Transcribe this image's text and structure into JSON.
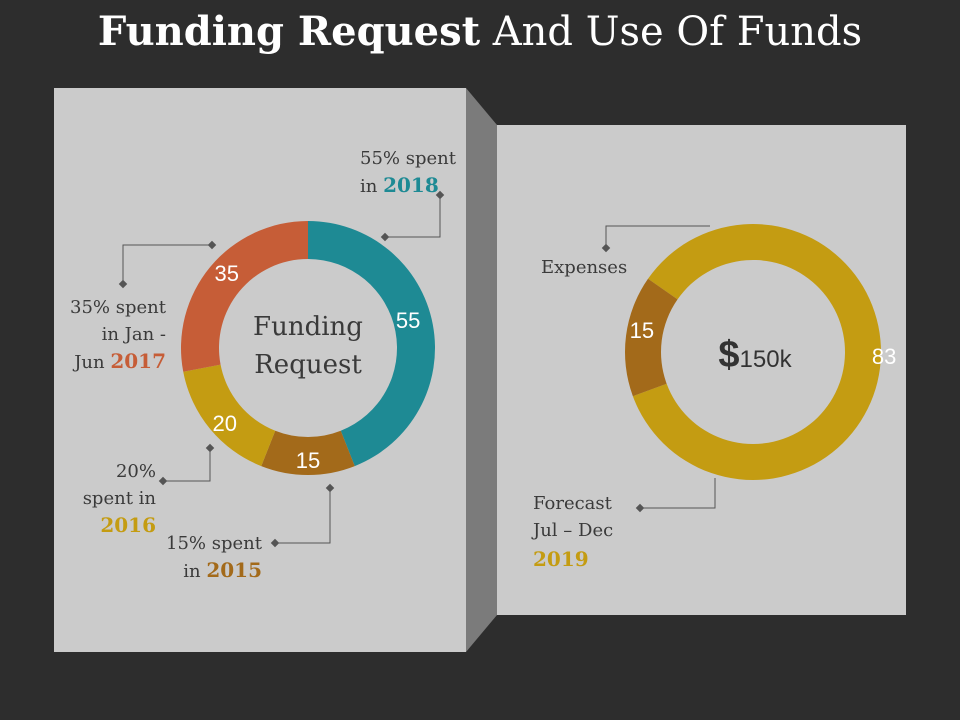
{
  "title": {
    "bold": "Funding Request",
    "rest": "And Use Of Funds"
  },
  "left_labels": {
    "l2018": {
      "line1": "55% spent",
      "line2": "in",
      "year": "2018"
    },
    "l2017": {
      "line1": "35% spent",
      "line2": "in Jan -",
      "line3": "Jun",
      "year": "2017"
    },
    "l2016": {
      "line1": "20%",
      "line2": "spent in",
      "year": "2016"
    },
    "l2015": {
      "line1": "15% spent",
      "line2": "in",
      "year": "2015"
    }
  },
  "left_center": {
    "line1": "Funding",
    "line2": "Request"
  },
  "right_labels": {
    "expenses": "Expenses",
    "forecast": {
      "line1": "Forecast",
      "line2": "Jul – Dec",
      "year": "2019"
    }
  },
  "right_center": {
    "currency": "$",
    "amount": "150k"
  },
  "colors": {
    "teal": "#1e8a94",
    "brown": "#a36a1a",
    "gold": "#c49c12",
    "orange": "#c65d37",
    "panel": "#cbcbcb",
    "panel_side": "#7b7b7b",
    "background": "#2d2d2d"
  },
  "chart_data": [
    {
      "type": "pie",
      "title": "Funding Request",
      "categories": [
        "2018",
        "2015",
        "2016",
        "2017"
      ],
      "values": [
        55,
        15,
        20,
        35
      ],
      "colors": [
        "#1e8a94",
        "#a36a1a",
        "#c49c12",
        "#c65d37"
      ]
    },
    {
      "type": "pie",
      "title": "$150k",
      "categories": [
        "Forecast Jul – Dec 2019",
        "Expenses"
      ],
      "values": [
        83,
        15
      ],
      "colors": [
        "#c49c12",
        "#a36a1a"
      ]
    }
  ]
}
